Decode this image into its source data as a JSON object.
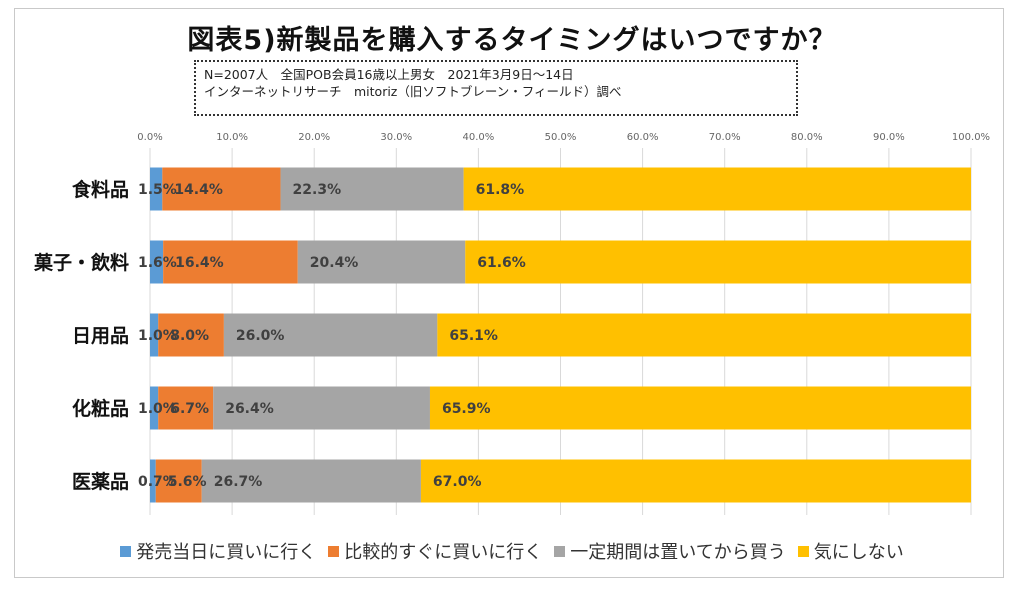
{
  "chart_data": {
    "type": "bar",
    "orientation": "horizontal",
    "stacked": true,
    "title": "図表5)新製品を購入するタイミングはいつですか？",
    "subtitle_lines": [
      "N=2007人　全国POB会員16歳以上男女　2021年3月9日～14日",
      "インターネットリサーチ　mitoriz（旧ソフトブレーン・フィールド）調べ"
    ],
    "categories": [
      "食料品",
      "菓子・飲料",
      "日用品",
      "化粧品",
      "医薬品"
    ],
    "xlim": [
      0,
      100
    ],
    "x_ticks": [
      "0.0%",
      "10.0%",
      "20.0%",
      "30.0%",
      "40.0%",
      "50.0%",
      "60.0%",
      "70.0%",
      "80.0%",
      "90.0%",
      "100.0%"
    ],
    "legend_position": "bottom",
    "grid": true,
    "series": [
      {
        "name": "発売当日に買いに行く",
        "color": "#5B9BD5",
        "values": [
          1.5,
          1.6,
          1.0,
          1.0,
          0.7
        ],
        "labels": [
          "1.5%",
          "1.6%",
          "1.0%",
          "1.0%",
          "0.7%"
        ]
      },
      {
        "name": "比較的すぐに買いに行く",
        "color": "#ED7D31",
        "values": [
          14.4,
          16.4,
          8.0,
          6.7,
          5.6
        ],
        "labels": [
          "14.4%",
          "16.4%",
          "8.0%",
          "6.7%",
          "5.6%"
        ]
      },
      {
        "name": "一定期間は置いてから買う",
        "color": "#A5A5A5",
        "values": [
          22.3,
          20.4,
          26.0,
          26.4,
          26.7
        ],
        "labels": [
          "22.3%",
          "20.4%",
          "26.0%",
          "26.4%",
          "26.7%"
        ]
      },
      {
        "name": "気にしない",
        "color": "#FFC000",
        "values": [
          61.8,
          61.6,
          65.1,
          65.9,
          67.0
        ],
        "labels": [
          "61.8%",
          "61.6%",
          "65.1%",
          "65.9%",
          "67.0%"
        ]
      }
    ]
  }
}
